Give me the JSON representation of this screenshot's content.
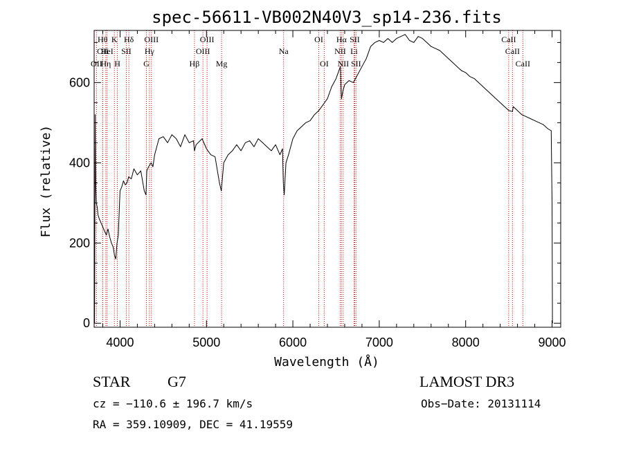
{
  "chart_data": {
    "type": "line",
    "title": "spec-56611-VB002N40V3_sp14-236.fits",
    "xlabel": "Wavelength (Å)",
    "ylabel": "Flux (relative)",
    "xlim": [
      3700,
      9100
    ],
    "ylim": [
      -10,
      730
    ],
    "xticks": [
      4000,
      5000,
      6000,
      7000,
      8000,
      9000
    ],
    "yticks": [
      0,
      200,
      400,
      600
    ],
    "xtick_labels": [
      "4000",
      "5000",
      "6000",
      "7000",
      "8000",
      "9000"
    ],
    "ytick_labels": [
      "0",
      "200",
      "400",
      "600"
    ],
    "series": [
      {
        "name": "flux",
        "x": [
          3705,
          3712,
          3718,
          3725,
          3735,
          3745,
          3760,
          3780,
          3800,
          3820,
          3840,
          3860,
          3880,
          3900,
          3920,
          3935,
          3950,
          3965,
          3980,
          4000,
          4020,
          4040,
          4060,
          4080,
          4100,
          4130,
          4160,
          4200,
          4240,
          4280,
          4300,
          4310,
          4330,
          4360,
          4380,
          4400,
          4450,
          4500,
          4550,
          4600,
          4650,
          4700,
          4750,
          4800,
          4850,
          4861,
          4880,
          4950,
          5000,
          5050,
          5100,
          5150,
          5172,
          5200,
          5250,
          5300,
          5350,
          5400,
          5450,
          5500,
          5550,
          5600,
          5650,
          5700,
          5750,
          5800,
          5850,
          5880,
          5890,
          5900,
          5920,
          5950,
          6000,
          6050,
          6100,
          6150,
          6200,
          6250,
          6300,
          6350,
          6400,
          6450,
          6500,
          6550,
          6563,
          6580,
          6600,
          6650,
          6700,
          6750,
          6800,
          6850,
          6900,
          6950,
          7000,
          7050,
          7100,
          7150,
          7200,
          7250,
          7300,
          7350,
          7400,
          7450,
          7500,
          7550,
          7600,
          7650,
          7700,
          7750,
          7800,
          7850,
          7900,
          7950,
          8000,
          8050,
          8100,
          8150,
          8200,
          8250,
          8300,
          8350,
          8400,
          8450,
          8500,
          8542,
          8550,
          8600,
          8650,
          8700,
          8750,
          8800,
          8850,
          8900,
          8950,
          8990,
          9000,
          9005
        ],
        "values": [
          0,
          520,
          350,
          300,
          290,
          270,
          260,
          250,
          240,
          230,
          220,
          235,
          215,
          200,
          190,
          170,
          160,
          200,
          220,
          330,
          340,
          355,
          345,
          350,
          365,
          360,
          385,
          370,
          380,
          330,
          320,
          380,
          390,
          400,
          390,
          420,
          460,
          465,
          450,
          470,
          460,
          440,
          470,
          450,
          455,
          430,
          445,
          460,
          435,
          420,
          415,
          350,
          330,
          400,
          420,
          430,
          445,
          430,
          450,
          455,
          440,
          460,
          450,
          440,
          430,
          445,
          420,
          435,
          350,
          320,
          400,
          420,
          460,
          480,
          490,
          500,
          505,
          520,
          530,
          545,
          560,
          590,
          610,
          640,
          560,
          580,
          595,
          605,
          600,
          620,
          640,
          660,
          690,
          700,
          705,
          700,
          710,
          700,
          710,
          715,
          720,
          705,
          700,
          715,
          710,
          700,
          690,
          685,
          680,
          670,
          660,
          650,
          640,
          630,
          625,
          615,
          610,
          600,
          590,
          580,
          570,
          560,
          550,
          540,
          530,
          528,
          540,
          530,
          520,
          515,
          510,
          505,
          500,
          495,
          485,
          480,
          300,
          0
        ]
      }
    ],
    "lines": [
      {
        "name": "OII",
        "x": 3727,
        "row": 3
      },
      {
        "name": "Hθ",
        "x": 3798,
        "row": 1
      },
      {
        "name": "OII",
        "x": 3800,
        "row": 2
      },
      {
        "name": "HeI",
        "x": 3850,
        "row": 2
      },
      {
        "name": "Hη",
        "x": 3835,
        "row": 3
      },
      {
        "name": "K",
        "x": 3934,
        "row": 1
      },
      {
        "name": "H",
        "x": 3969,
        "row": 3
      },
      {
        "name": "SII",
        "x": 4072,
        "row": 2
      },
      {
        "name": "Hδ",
        "x": 4102,
        "row": 1
      },
      {
        "name": "OIII",
        "x": 4363,
        "row": 1
      },
      {
        "name": "Hγ",
        "x": 4340,
        "row": 2
      },
      {
        "name": "G",
        "x": 4305,
        "row": 3
      },
      {
        "name": "Hβ",
        "x": 4861,
        "row": 3
      },
      {
        "name": "OIII",
        "x": 4959,
        "row": 2
      },
      {
        "name": "OIII",
        "x": 5007,
        "row": 1
      },
      {
        "name": "Mg",
        "x": 5175,
        "row": 3
      },
      {
        "name": "Na",
        "x": 5893,
        "row": 2
      },
      {
        "name": "OI",
        "x": 6300,
        "row": 1
      },
      {
        "name": "OI",
        "x": 6363,
        "row": 3
      },
      {
        "name": "NII",
        "x": 6548,
        "row": 2
      },
      {
        "name": "Hα",
        "x": 6563,
        "row": 1
      },
      {
        "name": "NII",
        "x": 6583,
        "row": 3
      },
      {
        "name": "SII",
        "x": 6716,
        "row": 1
      },
      {
        "name": "Li",
        "x": 6708,
        "row": 2
      },
      {
        "name": "SII",
        "x": 6731,
        "row": 3
      },
      {
        "name": "CaII",
        "x": 8498,
        "row": 1
      },
      {
        "name": "CaII",
        "x": 8542,
        "row": 2
      },
      {
        "name": "CaII",
        "x": 8662,
        "row": 3
      }
    ],
    "colors": {
      "line_marker": "#cc0000",
      "spectrum": "#000000"
    }
  },
  "info": {
    "object_class": "STAR",
    "subclass": "G7",
    "survey": "LAMOST DR3",
    "redshift": "cz = −110.6 ± 196.7 km/s",
    "obs_date": "Obs−Date: 20131114",
    "coords": "RA = 359.10909, DEC =  41.19559"
  }
}
